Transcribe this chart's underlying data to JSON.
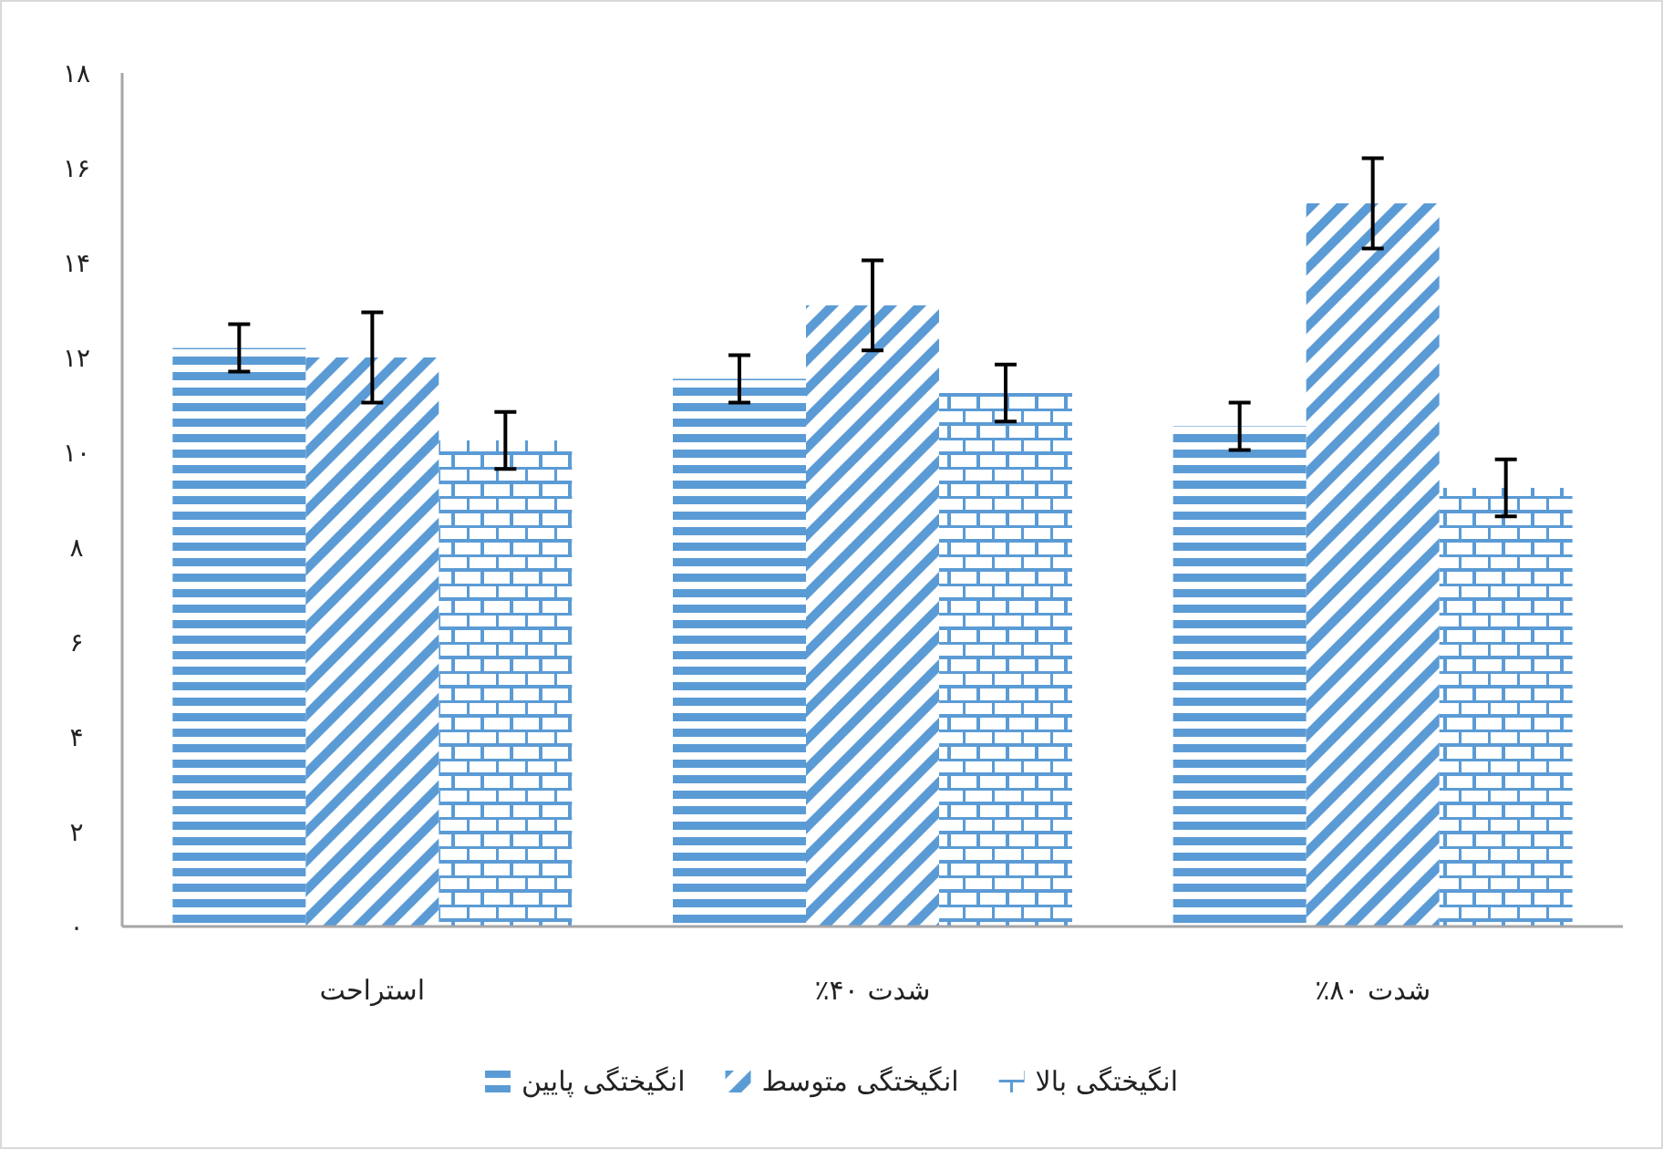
{
  "chart_data": {
    "type": "bar",
    "categories": [
      "استراحت",
      "شدت ۴۰٪",
      "شدت ۸۰٪"
    ],
    "series": [
      {
        "name": "انگیختگی پایین",
        "color": "#5b9bd5",
        "values": [
          12.2,
          11.55,
          10.55
        ],
        "errors": [
          0.5,
          0.5,
          0.5
        ]
      },
      {
        "name": "انگیختگی متوسط",
        "color": "#5b9bd5",
        "values": [
          12.0,
          13.1,
          15.25
        ],
        "errors": [
          0.95,
          0.95,
          0.95
        ]
      },
      {
        "name": "انگیختگی بالا",
        "color": "#5b9bd5",
        "values": [
          10.25,
          11.25,
          9.25
        ],
        "errors": [
          0.6,
          0.6,
          0.6
        ]
      }
    ],
    "ylim": [
      0,
      18
    ],
    "yticks": [
      {
        "value": 0,
        "label": "۰"
      },
      {
        "value": 2,
        "label": "۲"
      },
      {
        "value": 4,
        "label": "۴"
      },
      {
        "value": 6,
        "label": "۶"
      },
      {
        "value": 8,
        "label": "۸"
      },
      {
        "value": 10,
        "label": "۱۰"
      },
      {
        "value": 12,
        "label": "۱۲"
      },
      {
        "value": 14,
        "label": "۱۴"
      },
      {
        "value": 16,
        "label": "۱۶"
      },
      {
        "value": 18,
        "label": "۱۸"
      }
    ],
    "grid": false,
    "legend": "bottom"
  }
}
